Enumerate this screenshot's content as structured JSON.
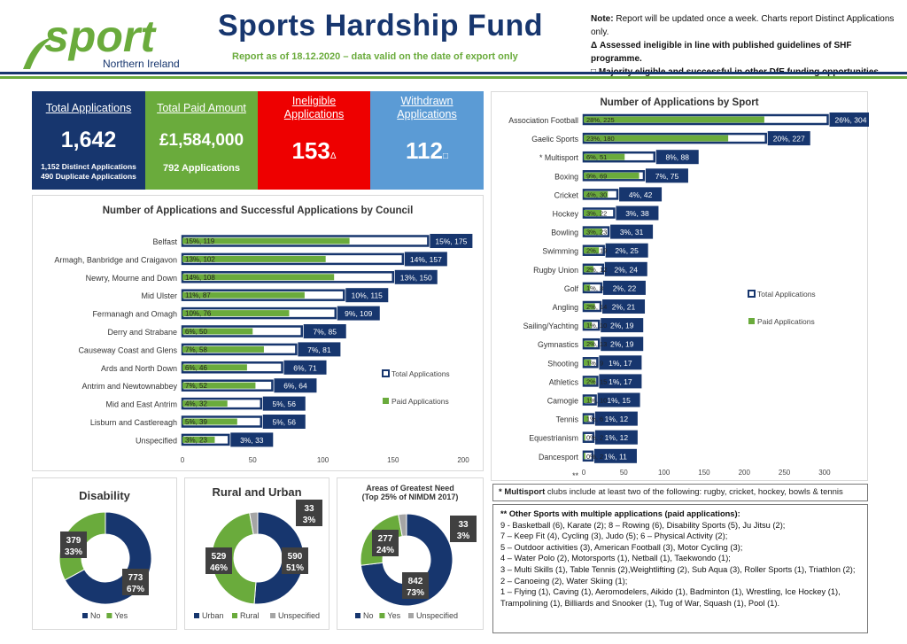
{
  "header": {
    "logo_word": "sport",
    "logo_sub": "Northern Ireland",
    "title": "Sports Hardship Fund",
    "subtitle": "Report as of 18.12.2020 – data valid on the date of export only",
    "notes": {
      "note_label": "Note:",
      "note_text": "Report will be updated once a week. Charts report Distinct Applications only.",
      "delta_text": "Δ Assessed ineligible in line with published guidelines of SHF programme.",
      "square_text": "□ Majority eligible and successful in other DfE funding opportunities"
    }
  },
  "kpis": {
    "total": {
      "label": "Total Applications",
      "value": "1,642",
      "line1": "1,152 Distinct Applications",
      "line2": "490 Duplicate Applications"
    },
    "paid": {
      "label": "Total Paid Amount",
      "value": "£1,584,000",
      "sub": "792 Applications"
    },
    "ineligible": {
      "label1": "Ineligible",
      "label2": "Applications",
      "value": "153",
      "mark": "Δ"
    },
    "withdrawn": {
      "label1": "Withdrawn",
      "label2": "Applications",
      "value": "112",
      "mark": "□"
    }
  },
  "colors": {
    "navy": "#17366e",
    "green": "#6aab3c",
    "red": "#ee0000",
    "blue": "#5b9bd5",
    "grey": "#a5a5a5"
  },
  "chart_data": [
    {
      "id": "council",
      "type": "bar",
      "orientation": "horizontal",
      "title": "Number of Applications and Successful Applications by Council",
      "categories": [
        "Belfast",
        "Armagh, Banbridge and Craigavon",
        "Newry, Mourne and Down",
        "Mid Ulster",
        "Fermanagh and Omagh",
        "Derry and Strabane",
        "Causeway Coast and Glens",
        "Ards and North Down",
        "Antrim and Newtownabbey",
        "Mid and East Antrim",
        "Lisburn and Castlereagh",
        "Unspecified"
      ],
      "series": [
        {
          "name": "Total Applications",
          "values": [
            175,
            157,
            150,
            115,
            109,
            85,
            81,
            71,
            64,
            56,
            56,
            33
          ],
          "labels": [
            "15%, 175",
            "14%, 157",
            "13%, 150",
            "10%, 115",
            "9%, 109",
            "7%, 85",
            "7%, 81",
            "6%, 71",
            "6%, 64",
            "5%, 56",
            "5%, 56",
            "3%, 33"
          ]
        },
        {
          "name": "Paid Applications",
          "values": [
            119,
            102,
            108,
            87,
            76,
            50,
            58,
            46,
            52,
            32,
            39,
            23
          ],
          "labels": [
            "15%, 119",
            "13%, 102",
            "14%, 108",
            "11%, 87",
            "10%, 76",
            "6%, 50",
            "7%, 58",
            "6%, 46",
            "7%, 52",
            "4%, 32",
            "5%, 39",
            "3%, 23"
          ]
        }
      ],
      "xlim": [
        0,
        200
      ],
      "xticks": [
        "0",
        "50",
        "100",
        "150",
        "200"
      ],
      "legend": "right"
    },
    {
      "id": "sport",
      "type": "bar",
      "orientation": "horizontal",
      "title": "Number of Applications by Sport",
      "categories": [
        "Association Football",
        "Gaelic Sports",
        "* Multisport",
        "Boxing",
        "Cricket",
        "Hockey",
        "Bowling",
        "Swimming",
        "Rugby Union",
        "Golf",
        "Angling",
        "Sailing/Yachting",
        "Gymnastics",
        "Shooting",
        "Athletics",
        "Camogie",
        "Tennis",
        "Equestrianism",
        "Dancesport",
        "**"
      ],
      "series": [
        {
          "name": "Total Applications",
          "values": [
            304,
            227,
            88,
            75,
            42,
            38,
            31,
            25,
            24,
            22,
            21,
            19,
            19,
            17,
            17,
            15,
            12,
            12,
            11,
            null
          ],
          "labels": [
            "26%, 304",
            "20%, 227",
            "8%, 88",
            "7%, 75",
            "4%, 42",
            "3%, 38",
            "3%, 31",
            "2%, 25",
            "2%, 24",
            "2%, 22",
            "2%, 21",
            "2%, 19",
            "2%, 19",
            "1%, 17",
            "1%, 17",
            "1%, 15",
            "1%, 12",
            "1%, 12",
            "1%, 11",
            ""
          ]
        },
        {
          "name": "Paid Applications",
          "values": [
            225,
            180,
            51,
            69,
            30,
            22,
            23,
            19,
            12,
            8,
            14,
            10,
            13,
            9,
            15,
            10,
            6,
            2,
            2,
            null
          ],
          "labels": [
            "28%, 225",
            "23%, 180",
            "6%, 51",
            "9%, 69",
            "4%, 30",
            "3%, 22",
            "3%, 23",
            "2%, 19",
            "2%, 12",
            "1%, 8",
            "2%, 14",
            "1%, 10",
            "2%, 13",
            "1%, 9",
            "2%, 15",
            "1%, 10",
            "1%, 6",
            "0%, 2",
            "0%, 2",
            ""
          ]
        }
      ],
      "xlim": [
        0,
        320
      ],
      "xticks": [
        "0",
        "50",
        "100",
        "150",
        "200",
        "250",
        "300"
      ],
      "legend": "right"
    },
    {
      "id": "disability",
      "type": "pie",
      "style": "donut",
      "title": "Disability",
      "categories": [
        "No",
        "Yes"
      ],
      "values": [
        773,
        379
      ],
      "labels": [
        [
          "773",
          "67%"
        ],
        [
          "379",
          "33%"
        ]
      ],
      "colors": [
        "#17366e",
        "#6aab3c"
      ],
      "legend": "bottom"
    },
    {
      "id": "rural",
      "type": "pie",
      "style": "donut",
      "title": "Rural and Urban",
      "categories": [
        "Urban",
        "Rural",
        "Unspecified"
      ],
      "values": [
        590,
        529,
        33
      ],
      "labels": [
        [
          "590",
          "51%"
        ],
        [
          "529",
          "46%"
        ],
        [
          "33",
          "3%"
        ]
      ],
      "colors": [
        "#17366e",
        "#6aab3c",
        "#a5a5a5"
      ],
      "legend": "bottom"
    },
    {
      "id": "need",
      "type": "pie",
      "style": "donut",
      "title": "Areas of Greatest Need",
      "subtitle": "(Top 25% of NIMDM 2017)",
      "categories": [
        "No",
        "Yes",
        "Unspecified"
      ],
      "values": [
        842,
        277,
        33
      ],
      "labels": [
        [
          "842",
          "73%"
        ],
        [
          "277",
          "24%"
        ],
        [
          "33",
          "3%"
        ]
      ],
      "colors": [
        "#17366e",
        "#6aab3c",
        "#a5a5a5"
      ],
      "legend": "bottom"
    }
  ],
  "footnotes": {
    "multisport_label": "* Multisport",
    "multisport_text": "clubs include at least two of the following: rugby, cricket, hockey, bowls & tennis",
    "other_heading": "** Other Sports with multiple applications (paid applications):",
    "other_lines": [
      "9 -  Basketball (6), Karate (2); 8 – Rowing (6), Disability Sports (5), Ju Jitsu (2);",
      "7 – Keep Fit (4), Cycling (3), Judo (5); 6 – Physical Activity (2);",
      "5 – Outdoor activities (3), American Football (3), Motor Cycling (3);",
      "4 – Water Polo (2), Motorsports (1), Netball (1), Taekwondo (1);",
      "3 – Multi Skills (1), Table Tennis (2),Weightlifting (2), Sub Aqua (3), Roller Sports (1), Triathlon (2);",
      "2 – Canoeing (2), Water Skiing (1);",
      "1 – Flying (1), Caving (1), Aeromodelers, Aikido (1), Badminton (1), Wrestling, Ice Hockey (1), Trampolining (1), Billiards and Snooker (1), Tug of War, Squash (1), Pool (1)."
    ]
  }
}
